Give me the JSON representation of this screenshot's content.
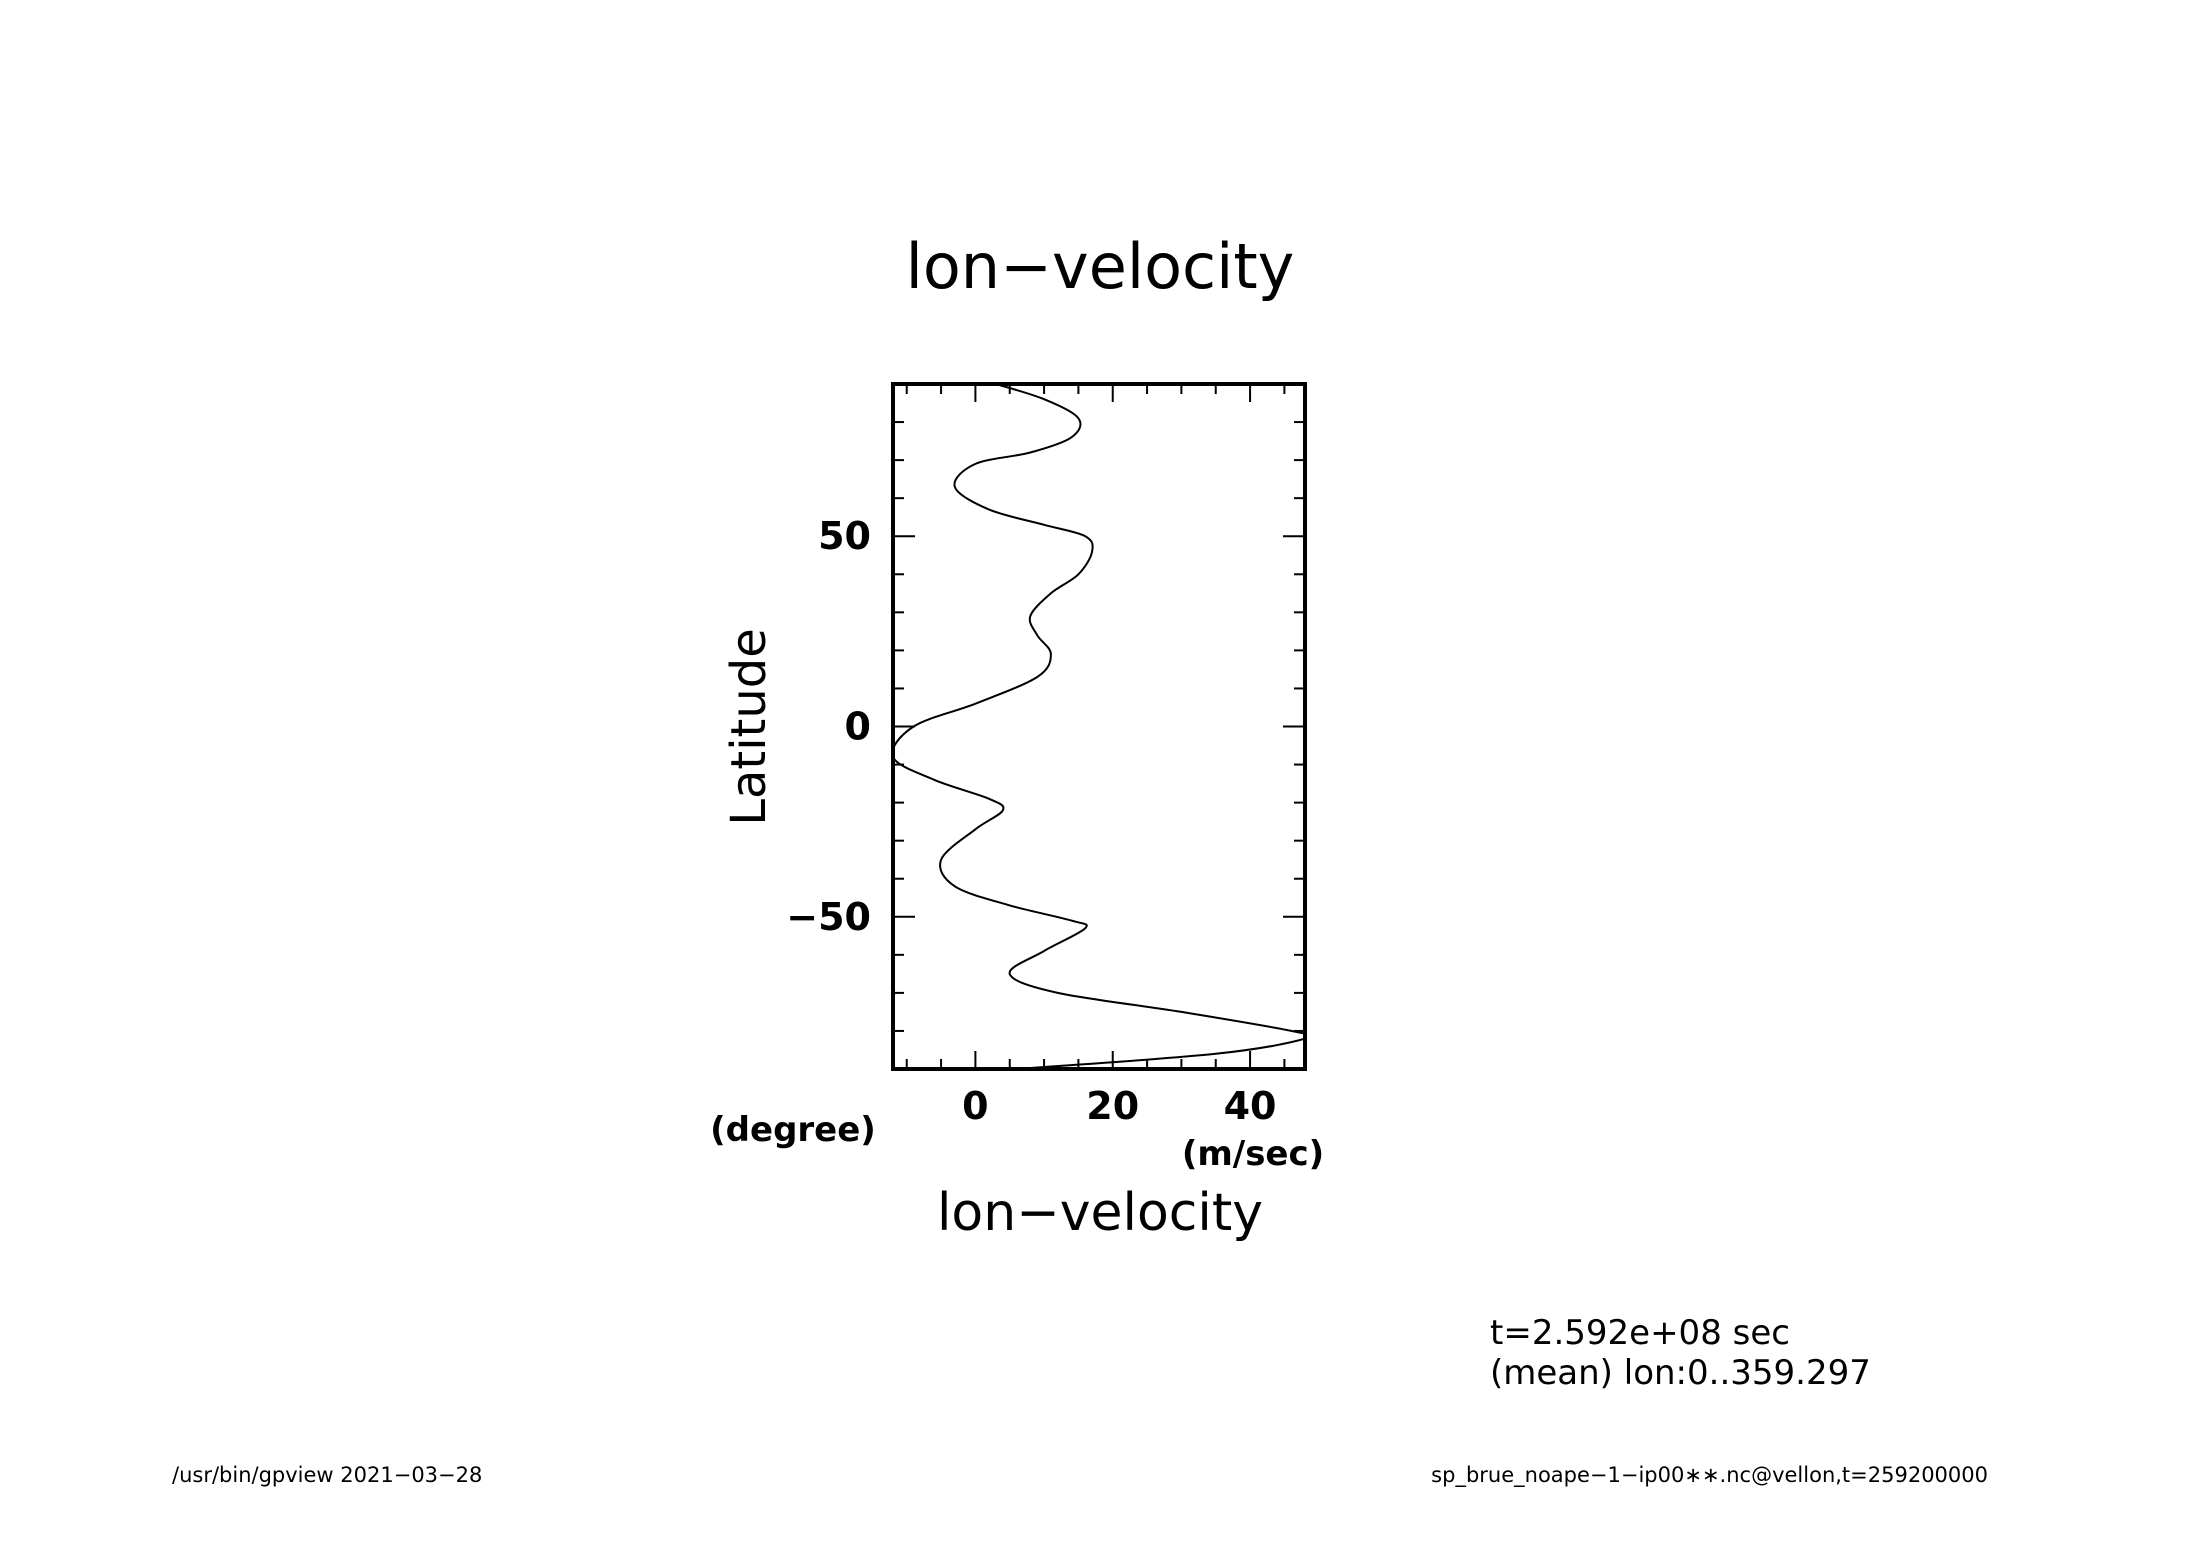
{
  "chart_data": {
    "type": "line",
    "title": "lon−velocity",
    "xlabel": "lon−velocity",
    "ylabel": "Latitude",
    "x_units": "(m/sec)",
    "y_units": "(degree)",
    "xlim": [
      -12,
      48
    ],
    "ylim": [
      -90,
      90
    ],
    "x_ticks": [
      0,
      20,
      40
    ],
    "x_tick_labels": [
      "0",
      "20",
      "40"
    ],
    "y_ticks": [
      -50,
      0,
      50
    ],
    "y_tick_labels": [
      "−50",
      "0",
      "50"
    ],
    "grid": false,
    "series": [
      {
        "x": [
          3,
          10,
          15,
          14,
          8,
          0,
          -3,
          2,
          10,
          16,
          17,
          15,
          11,
          8,
          9,
          11,
          9,
          0,
          -9,
          -12,
          -6,
          2,
          4,
          0,
          -5,
          -3,
          5,
          14,
          16,
          10,
          5,
          12,
          30,
          46,
          48,
          35,
          6
        ],
        "y": [
          90,
          86,
          81,
          76,
          72,
          69,
          63,
          57,
          53,
          50,
          46,
          40,
          35,
          29,
          24,
          19,
          13,
          6,
          0,
          -8,
          -14,
          -19,
          -22,
          -27,
          -35,
          -42,
          -47,
          -51,
          -53,
          -59,
          -65,
          -70,
          -75,
          -80,
          -82,
          -86,
          -90
        ]
      }
    ]
  },
  "annotations": {
    "time": "t=2.592e+08 sec",
    "mean": "(mean) lon:0..359.297"
  },
  "footer": {
    "left": "/usr/bin/gpview   2021−03−28",
    "right": "sp_brue_noape−1−ip00∗∗.nc@vellon,t=259200000"
  }
}
